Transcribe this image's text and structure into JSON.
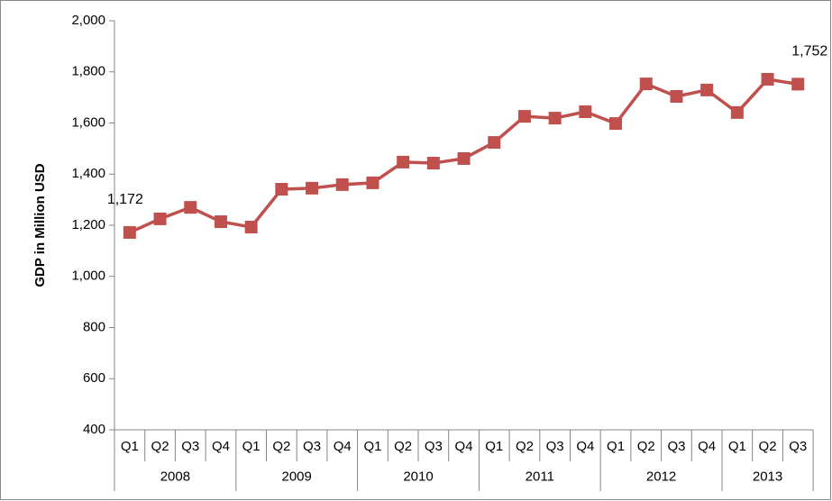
{
  "chart_data": {
    "type": "line",
    "y_label": "GDP in Million USD",
    "groups": [
      {
        "name": "2008",
        "categories": [
          "Q1",
          "Q2",
          "Q3",
          "Q4"
        ]
      },
      {
        "name": "2009",
        "categories": [
          "Q1",
          "Q2",
          "Q3",
          "Q4"
        ]
      },
      {
        "name": "2010",
        "categories": [
          "Q1",
          "Q2",
          "Q3",
          "Q4"
        ]
      },
      {
        "name": "2011",
        "categories": [
          "Q1",
          "Q2",
          "Q3",
          "Q4"
        ]
      },
      {
        "name": "2012",
        "categories": [
          "Q1",
          "Q2",
          "Q3",
          "Q4"
        ]
      },
      {
        "name": "2013",
        "categories": [
          "Q1",
          "Q2",
          "Q3"
        ]
      }
    ],
    "values": [
      1172,
      1225,
      1270,
      1214,
      1193,
      1341,
      1345,
      1359,
      1366,
      1447,
      1443,
      1461,
      1524,
      1626,
      1619,
      1644,
      1598,
      1753,
      1704,
      1729,
      1641,
      1771,
      1752
    ],
    "value_labels": [
      "1,172",
      null,
      null,
      null,
      null,
      null,
      null,
      null,
      null,
      null,
      null,
      null,
      null,
      null,
      null,
      null,
      null,
      null,
      null,
      null,
      null,
      null,
      "1,752"
    ],
    "color": "#c0504d",
    "ylim": [
      400,
      2000
    ],
    "yticks": [
      400,
      600,
      800,
      {
        "value": 1000,
        "label": "1,000"
      },
      {
        "value": 1200,
        "label": "1,200"
      },
      {
        "value": 1400,
        "label": "1,400"
      },
      {
        "value": 1600,
        "label": "1,600"
      },
      {
        "value": 1800,
        "label": "1,800"
      },
      {
        "value": 2000,
        "label": "2,000"
      }
    ]
  }
}
